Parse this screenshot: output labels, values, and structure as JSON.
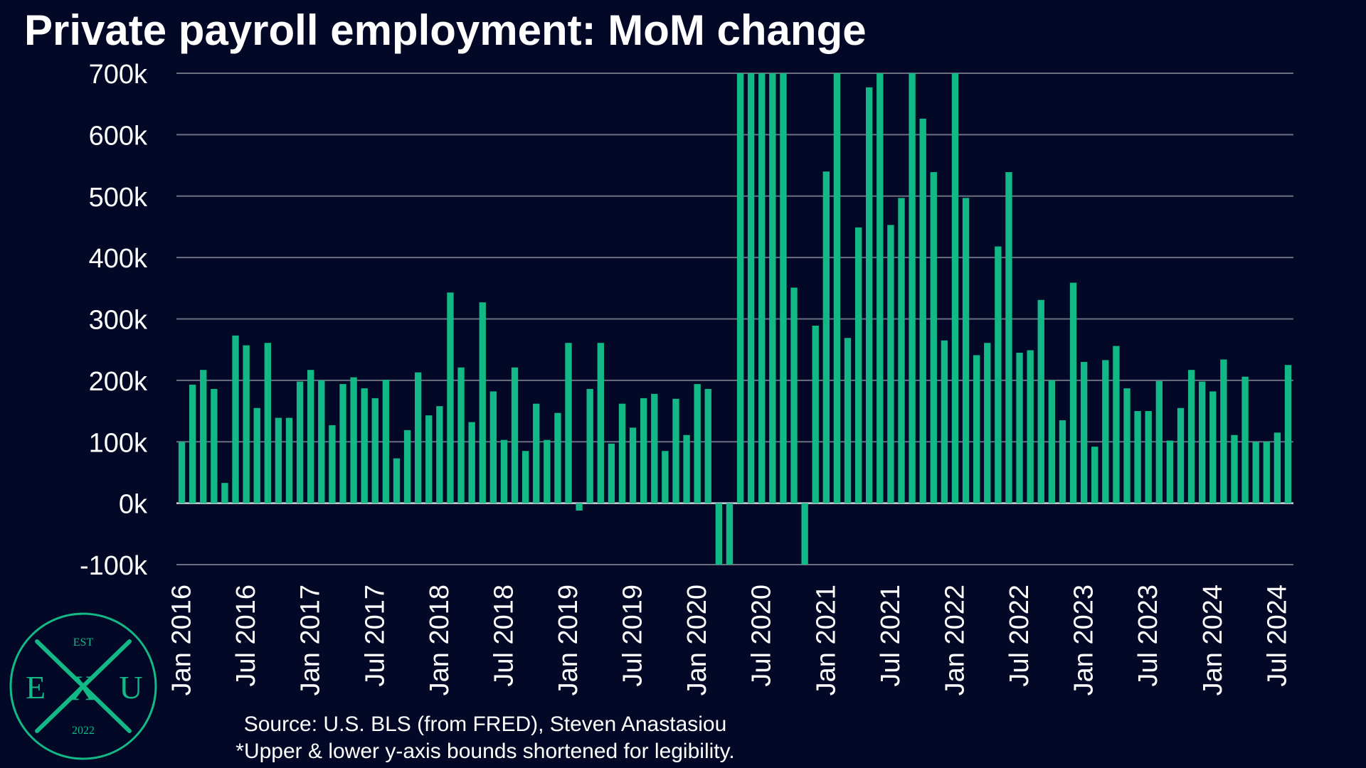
{
  "title": "Private payroll employment: MoM change",
  "footer": {
    "source": "Source: U.S. BLS (from FRED), Steven Anastasiou",
    "note": "*Upper & lower y-axis bounds shortened for legibility."
  },
  "logo": {
    "top": "EST",
    "left": "E",
    "center": "X",
    "right": "U",
    "bottom": "2022"
  },
  "colors": {
    "background": "#020826",
    "bar": "#12b886",
    "grid": "#6b6f80",
    "text": "#ffffff"
  },
  "chart_data": {
    "type": "bar",
    "title": "Private payroll employment: MoM change",
    "xlabel": "",
    "ylabel": "",
    "ylim": [
      -100000,
      700000
    ],
    "grid": true,
    "yticks": [
      -100000,
      0,
      100000,
      200000,
      300000,
      400000,
      500000,
      600000,
      700000
    ],
    "ytick_labels": [
      "-100k",
      "0k",
      "100k",
      "200k",
      "300k",
      "400k",
      "500k",
      "600k",
      "700k"
    ],
    "x_start": "Jan 2016",
    "xtick_labels": [
      "Jan 2016",
      "Jul 2016",
      "Jan 2017",
      "Jul 2017",
      "Jan 2018",
      "Jul 2018",
      "Jan 2019",
      "Jul 2019",
      "Jan 2020",
      "Jul 2020",
      "Jan 2021",
      "Jul 2021",
      "Jan 2022",
      "Jul 2022",
      "Jan 2023",
      "Jul 2023",
      "Jan 2024",
      "Jul 2024"
    ],
    "values": [
      100000,
      193000,
      217000,
      186000,
      33000,
      273000,
      257000,
      155000,
      261000,
      139000,
      139000,
      198000,
      217000,
      200000,
      127000,
      194000,
      205000,
      187000,
      171000,
      201000,
      73000,
      119000,
      213000,
      143000,
      158000,
      343000,
      221000,
      132000,
      327000,
      182000,
      103000,
      221000,
      85000,
      162000,
      103000,
      147000,
      261000,
      -12000,
      186000,
      261000,
      97000,
      162000,
      123000,
      171000,
      178000,
      85000,
      170000,
      111000,
      194000,
      186000,
      -100000,
      -100000,
      700000,
      700000,
      700000,
      700000,
      700000,
      351000,
      -100000,
      289000,
      540000,
      700000,
      269000,
      449000,
      677000,
      700000,
      453000,
      497000,
      700000,
      626000,
      539000,
      265000,
      700000,
      497000,
      241000,
      261000,
      418000,
      539000,
      245000,
      249000,
      331000,
      200000,
      135000,
      359000,
      230000,
      92000,
      233000,
      256000,
      187000,
      150000,
      150000,
      199000,
      102000,
      155000,
      217000,
      198000,
      182000,
      234000,
      111000,
      206000,
      100000,
      100000,
      115000,
      225000
    ]
  }
}
